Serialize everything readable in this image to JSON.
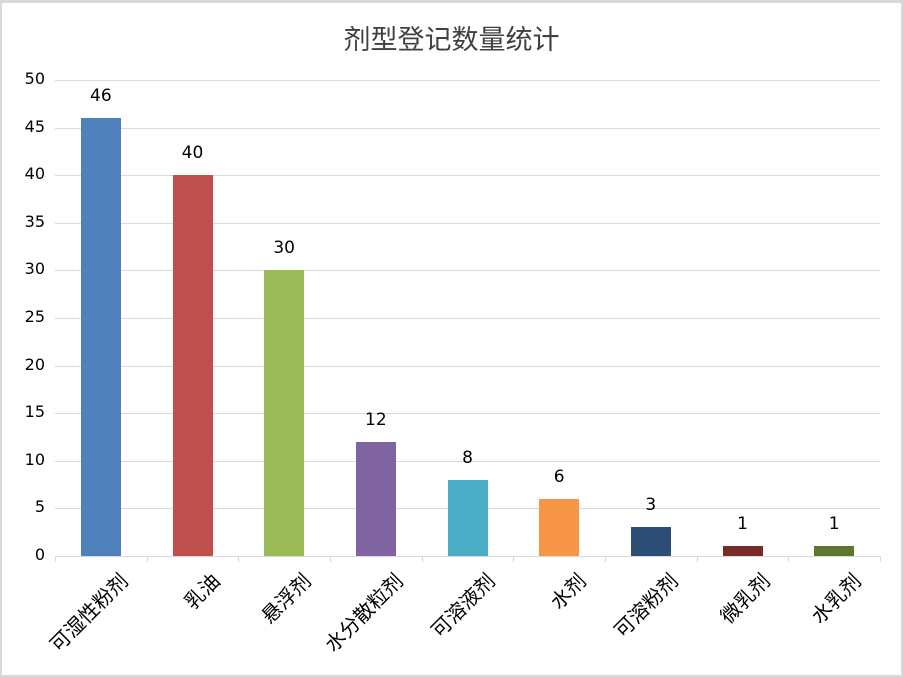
{
  "chart_data": {
    "type": "bar",
    "title": "剂型登记数量统计",
    "xlabel": "",
    "ylabel": "",
    "ylim": [
      0,
      50
    ],
    "yticks": [
      0,
      5,
      10,
      15,
      20,
      25,
      30,
      35,
      40,
      45,
      50
    ],
    "grid": true,
    "legend": "none",
    "categories": [
      "可湿性粉剂",
      "乳油",
      "悬浮剂",
      "水分散粒剂",
      "可溶液剂",
      "水剂",
      "可溶粉剂",
      "微乳剂",
      "水乳剂"
    ],
    "values": [
      46,
      40,
      30,
      12,
      8,
      6,
      3,
      1,
      1
    ],
    "colors": [
      "#4f81bd",
      "#c0504d",
      "#9bbb59",
      "#8064a2",
      "#4bacc6",
      "#f79646",
      "#2c4d75",
      "#772c2a",
      "#5f7530"
    ],
    "data_labels": [
      "46",
      "40",
      "30",
      "12",
      "8",
      "6",
      "3",
      "1",
      "1"
    ]
  }
}
